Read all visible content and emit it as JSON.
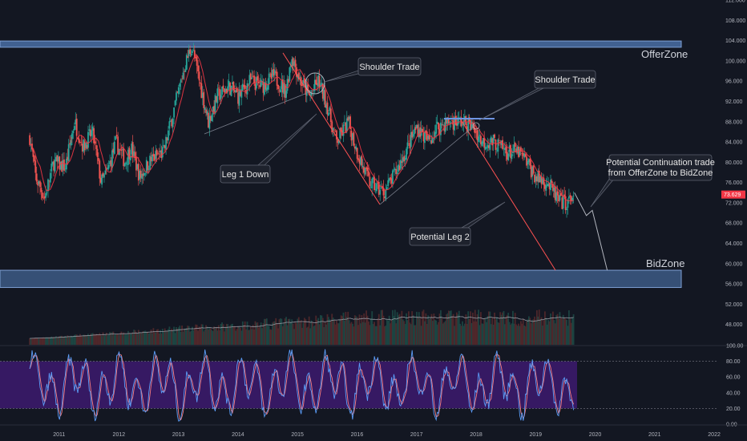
{
  "chart_data": {
    "type": "candlestick",
    "timeframe_years": [
      "2011",
      "2012",
      "2013",
      "2014",
      "2015",
      "2016",
      "2017",
      "2018",
      "2019",
      "2020",
      "2021",
      "2022"
    ],
    "price_axis": {
      "range": [
        44,
        112
      ],
      "ticks": [
        "112.000",
        "108.000",
        "104.000",
        "100.000",
        "96.000",
        "92.000",
        "88.000",
        "84.000",
        "80.000",
        "76.000",
        "72.000",
        "68.000",
        "64.000",
        "60.000",
        "56.000",
        "52.000",
        "48.000"
      ],
      "last_price_label": "73.629",
      "last_price": 73.629
    },
    "oscillator_axis": {
      "range": [
        0,
        100
      ],
      "ticks": [
        "100.00",
        "80.00",
        "60.00",
        "40.00",
        "20.00",
        "0.00"
      ],
      "band": [
        20,
        80
      ]
    },
    "zones": [
      {
        "label": "OfferZone",
        "low": 103.0,
        "high": 103.6
      },
      {
        "label": "BidZone",
        "low": 55.3,
        "high": 58.7
      }
    ],
    "callouts": [
      {
        "label": "Shoulder Trade",
        "id": "shoulder-1"
      },
      {
        "label": "Shoulder Trade",
        "id": "shoulder-2"
      },
      {
        "label": "Leg 1 Down",
        "id": "leg1"
      },
      {
        "label": "Potential Leg 2",
        "id": "leg2"
      },
      {
        "label": "Potential Continuation trade",
        "label2": "from OfferZone to BidZone",
        "id": "continuation"
      }
    ],
    "price_anchors": [
      {
        "t": 2010.5,
        "p": 85
      },
      {
        "t": 2010.6,
        "p": 77
      },
      {
        "t": 2010.75,
        "p": 73
      },
      {
        "t": 2010.9,
        "p": 80
      },
      {
        "t": 2011.1,
        "p": 79
      },
      {
        "t": 2011.25,
        "p": 88
      },
      {
        "t": 2011.4,
        "p": 83
      },
      {
        "t": 2011.55,
        "p": 86
      },
      {
        "t": 2011.7,
        "p": 76
      },
      {
        "t": 2011.8,
        "p": 78
      },
      {
        "t": 2011.95,
        "p": 84
      },
      {
        "t": 2012.1,
        "p": 80
      },
      {
        "t": 2012.2,
        "p": 83
      },
      {
        "t": 2012.35,
        "p": 77
      },
      {
        "t": 2012.5,
        "p": 80
      },
      {
        "t": 2012.6,
        "p": 81
      },
      {
        "t": 2012.75,
        "p": 82
      },
      {
        "t": 2012.85,
        "p": 87
      },
      {
        "t": 2013.0,
        "p": 94
      },
      {
        "t": 2013.1,
        "p": 99
      },
      {
        "t": 2013.22,
        "p": 103
      },
      {
        "t": 2013.35,
        "p": 96
      },
      {
        "t": 2013.5,
        "p": 88
      },
      {
        "t": 2013.65,
        "p": 93
      },
      {
        "t": 2013.85,
        "p": 95
      },
      {
        "t": 2014.0,
        "p": 93
      },
      {
        "t": 2014.2,
        "p": 96
      },
      {
        "t": 2014.4,
        "p": 95
      },
      {
        "t": 2014.6,
        "p": 97
      },
      {
        "t": 2014.8,
        "p": 94
      },
      {
        "t": 2014.9,
        "p": 101
      },
      {
        "t": 2015.05,
        "p": 96
      },
      {
        "t": 2015.2,
        "p": 93
      },
      {
        "t": 2015.35,
        "p": 96
      },
      {
        "t": 2015.5,
        "p": 91
      },
      {
        "t": 2015.65,
        "p": 84
      },
      {
        "t": 2015.85,
        "p": 88
      },
      {
        "t": 2016.0,
        "p": 82
      },
      {
        "t": 2016.2,
        "p": 76
      },
      {
        "t": 2016.45,
        "p": 74
      },
      {
        "t": 2016.65,
        "p": 78
      },
      {
        "t": 2016.85,
        "p": 83
      },
      {
        "t": 2017.0,
        "p": 87
      },
      {
        "t": 2017.2,
        "p": 84
      },
      {
        "t": 2017.35,
        "p": 87
      },
      {
        "t": 2017.55,
        "p": 88
      },
      {
        "t": 2017.75,
        "p": 88
      },
      {
        "t": 2017.95,
        "p": 87
      },
      {
        "t": 2018.1,
        "p": 84
      },
      {
        "t": 2018.3,
        "p": 84
      },
      {
        "t": 2018.5,
        "p": 82
      },
      {
        "t": 2018.7,
        "p": 82
      },
      {
        "t": 2018.85,
        "p": 80
      },
      {
        "t": 2019.0,
        "p": 77
      },
      {
        "t": 2019.2,
        "p": 76
      },
      {
        "t": 2019.4,
        "p": 72
      },
      {
        "t": 2019.55,
        "p": 72
      },
      {
        "t": 2019.65,
        "p": 74
      }
    ],
    "projected_path": [
      {
        "t": 2019.65,
        "p": 74
      },
      {
        "t": 2019.85,
        "p": 69.5
      },
      {
        "t": 2019.95,
        "p": 70.5
      },
      {
        "t": 2020.2,
        "p": 58.7
      }
    ]
  },
  "colors": {
    "background": "#131722",
    "up_candle": "#26a69a",
    "down_candle": "#ef5350",
    "zone_fill": "#4a6fa5",
    "zone_stroke": "#7e9fd4",
    "leg_line": "#ff5252",
    "trend_line": "#7a7f8c",
    "ma_line": "#f23645",
    "osc_band": "#3d1a6e",
    "osc_k": "#5b9cf6",
    "osc_d": "#f77c80",
    "callout_bg": "#1e222d",
    "price_tag": "#f23645"
  }
}
